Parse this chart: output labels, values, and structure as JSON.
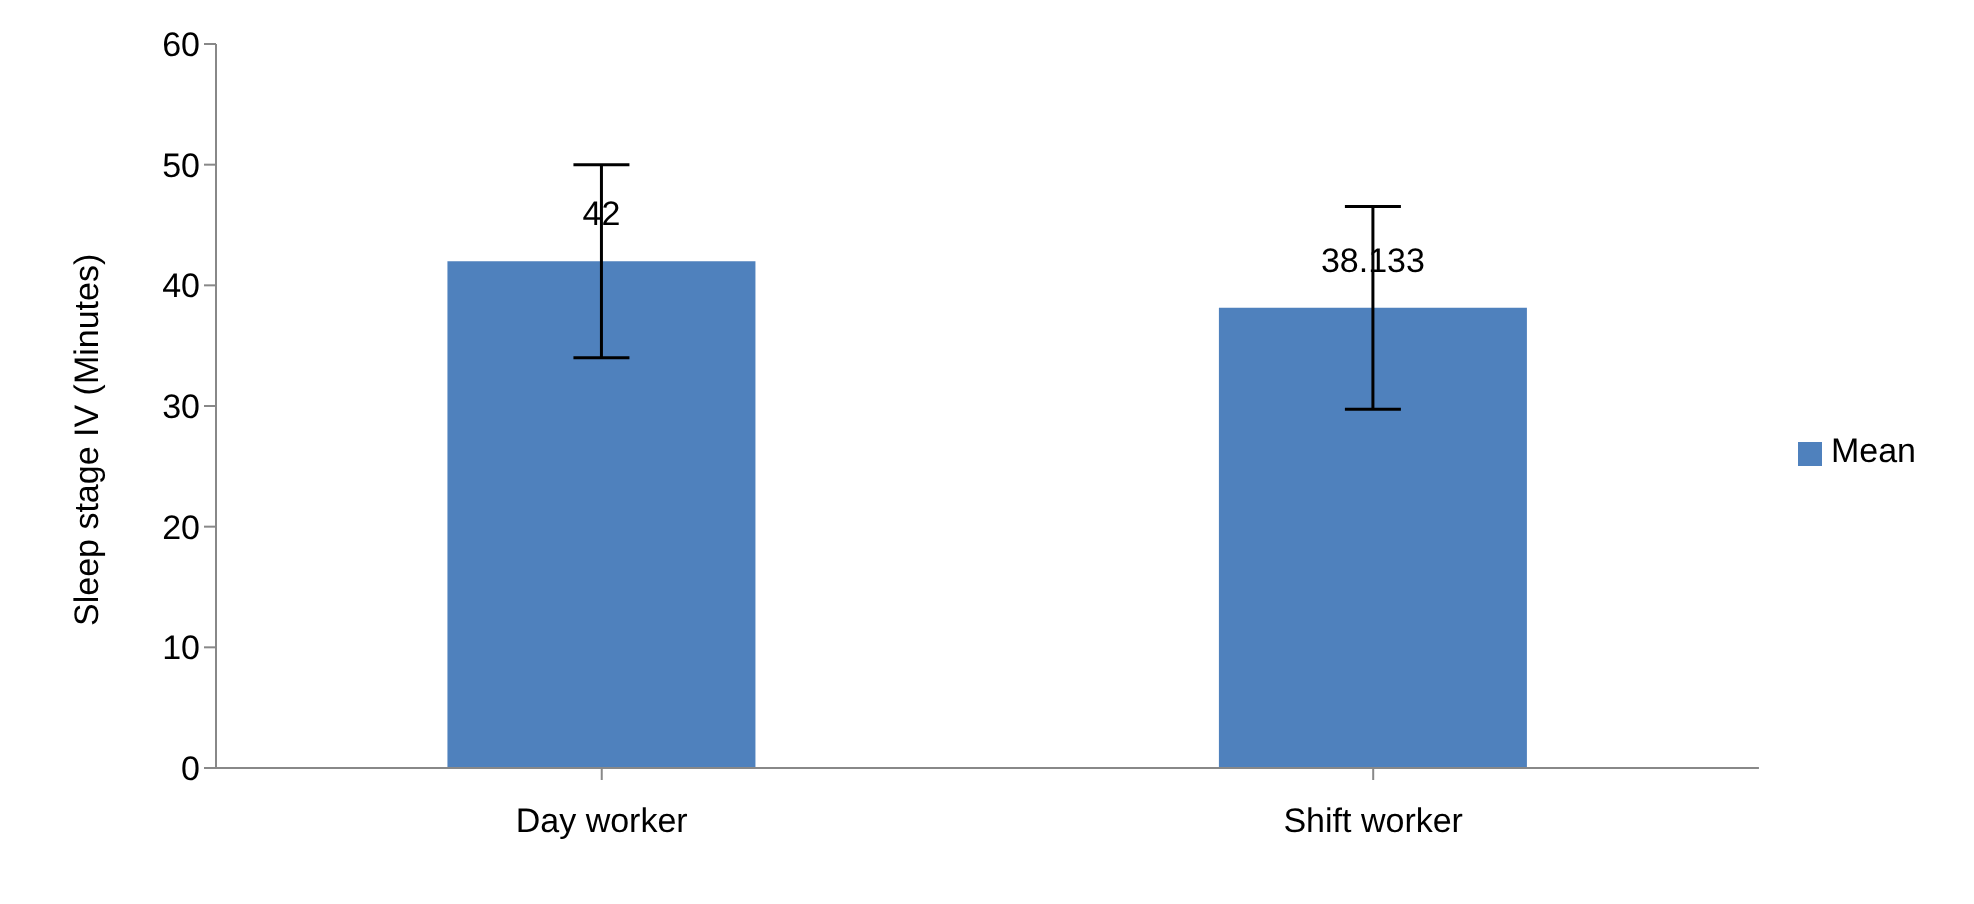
{
  "chart_data": {
    "type": "bar",
    "ylabel": "Sleep stage IV (Minutes)",
    "categories": [
      "Day worker",
      "Shift worker"
    ],
    "series": [
      {
        "name": "Mean",
        "color": "#4f81bd",
        "values": [
          42,
          38.133
        ],
        "errors": [
          8,
          8.4
        ]
      }
    ],
    "ylim": [
      0,
      60
    ],
    "yticks": [
      0,
      10,
      20,
      30,
      40,
      50,
      60
    ],
    "grid": false,
    "legend": "right",
    "data_labels": true
  }
}
